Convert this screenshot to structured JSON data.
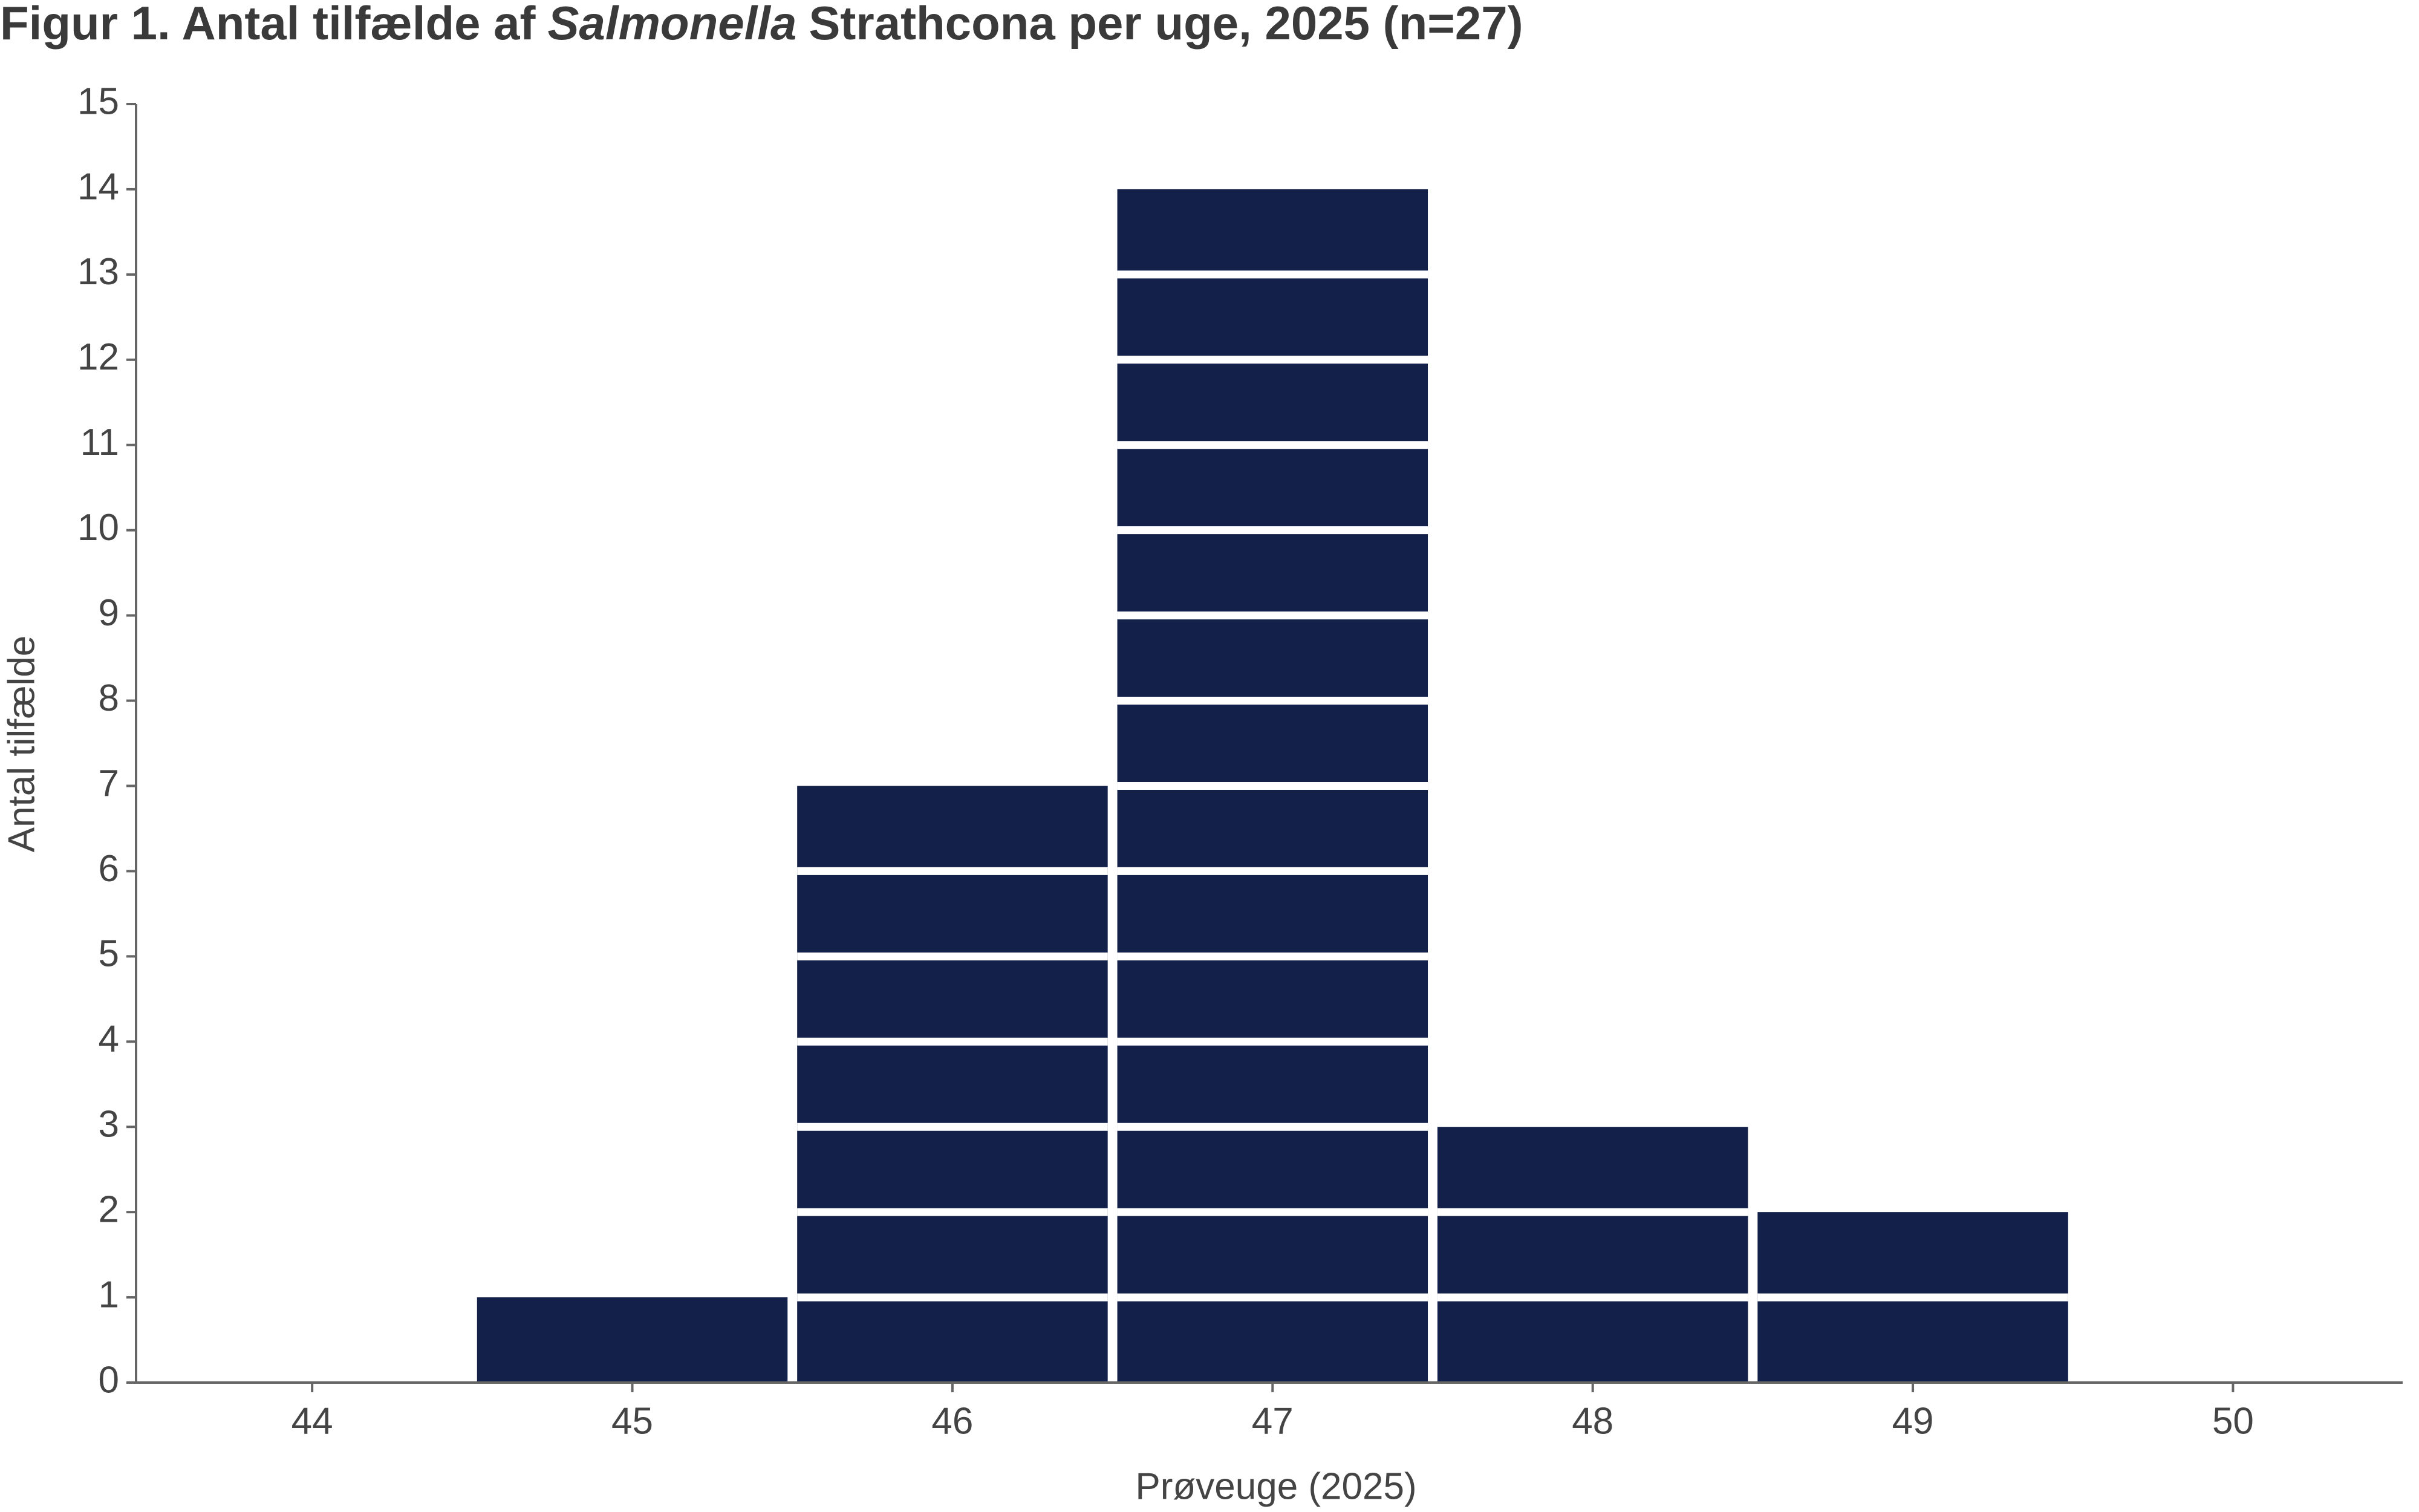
{
  "chart_data": {
    "type": "bar",
    "title": "Figur 1. Antal tilfælde af",
    "title_italic": "Salmonella",
    "title_end": "Strathcona per uge, 2025 (n=27)",
    "x_label": "Prøveuge (2025)",
    "y_label": "Antal tilfælde",
    "x": [
      45,
      46,
      47,
      48,
      49
    ],
    "values": [
      1,
      7,
      14,
      3,
      2
    ],
    "color": "#13214a",
    "xlim": [
      43.45,
      50.53
    ],
    "xticks": [
      44,
      45,
      46,
      47,
      48,
      49,
      50
    ],
    "ylim": [
      0,
      15
    ],
    "yticks": [
      0,
      1,
      2,
      3,
      4,
      5,
      6,
      7,
      8,
      9,
      10,
      11,
      12,
      13,
      14,
      15
    ],
    "grid": false
  }
}
